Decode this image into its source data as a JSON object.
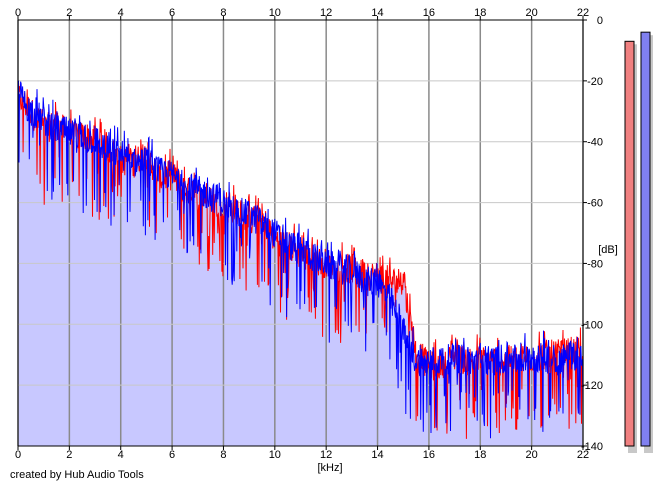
{
  "chart_data": {
    "type": "area",
    "xlabel": "[kHz]",
    "ylabel": "[dB]",
    "xlim": [
      0,
      22
    ],
    "ylim": [
      -140,
      0
    ],
    "x_ticks": [
      0,
      2,
      4,
      6,
      8,
      10,
      12,
      14,
      16,
      18,
      20,
      22
    ],
    "y_ticks": [
      0,
      -20,
      -40,
      -60,
      -80,
      -100,
      -120,
      -140
    ],
    "y_tick_labels": [
      "0",
      "-20",
      "-40",
      "-60",
      "-80",
      "-100",
      "-120",
      "-140"
    ],
    "grid": true,
    "series": [
      {
        "color": "#ff0000",
        "x": [
          0,
          0.5,
          1,
          1.5,
          2,
          2.5,
          3,
          3.5,
          4,
          4.5,
          5,
          5.5,
          6,
          6.5,
          7,
          7.5,
          8,
          8.5,
          9,
          9.5,
          10,
          10.5,
          11,
          11.5,
          12,
          12.5,
          13,
          13.5,
          14,
          14.5,
          15,
          15.3,
          15.5,
          16,
          16.5,
          17,
          17.5,
          18,
          18.5,
          19,
          19.5,
          20,
          20.5,
          21,
          21.5,
          22
        ],
        "values": [
          -25,
          -30,
          -36,
          -34,
          -38,
          -38,
          -39,
          -42,
          -46,
          -47,
          -44,
          -52,
          -51,
          -56,
          -58,
          -58,
          -62,
          -62,
          -66,
          -65,
          -72,
          -74,
          -77,
          -79,
          -80,
          -81,
          -82,
          -84,
          -84,
          -86,
          -86,
          -100,
          -108,
          -114,
          -113,
          -111,
          -112,
          -112,
          -112,
          -112,
          -111,
          -111,
          -110,
          -110,
          -109,
          -109
        ]
      },
      {
        "color": "#0000ff",
        "x": [
          0,
          0.5,
          1,
          1.5,
          2,
          2.5,
          3,
          3.5,
          4,
          4.5,
          5,
          5.5,
          6,
          6.5,
          7,
          7.5,
          8,
          8.5,
          9,
          9.5,
          10,
          10.5,
          11,
          11.5,
          12,
          12.5,
          13,
          13.5,
          14,
          14.5,
          15,
          15.3,
          15.5,
          16,
          16.5,
          17,
          17.5,
          18,
          18.5,
          19,
          19.5,
          20,
          20.5,
          21,
          21.5,
          22
        ],
        "values": [
          -24,
          -30,
          -33,
          -36,
          -37,
          -40,
          -39,
          -43,
          -44,
          -47,
          -46,
          -50,
          -51,
          -55,
          -56,
          -58,
          -60,
          -63,
          -64,
          -67,
          -70,
          -74,
          -75,
          -78,
          -80,
          -82,
          -82,
          -86,
          -86,
          -92,
          -102,
          -108,
          -112,
          -112,
          -112,
          -111,
          -112,
          -112,
          -112,
          -111,
          -112,
          -111,
          -111,
          -112,
          -110,
          -111
        ]
      }
    ],
    "meters": [
      {
        "color": "#f08080",
        "level_db": -7
      },
      {
        "color": "#8080f0",
        "level_db": -4
      }
    ],
    "fill_color": "#c8c8ff",
    "credit": "created by Hub Audio Tools"
  }
}
